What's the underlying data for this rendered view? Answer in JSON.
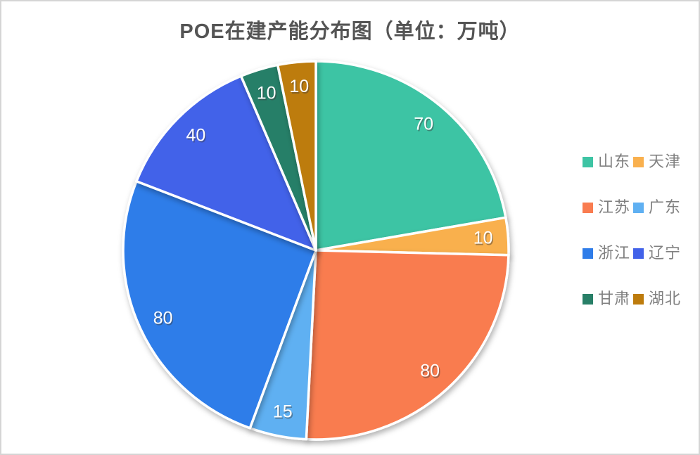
{
  "frame": {
    "background": "#FFFFFF",
    "border_color": "#D5D5D5"
  },
  "chart_data": {
    "type": "pie",
    "title": "POE在建产能分布图（单位：万吨）",
    "unit_label": "万吨",
    "categories": [
      "山东",
      "天津",
      "江苏",
      "广东",
      "浙江",
      "辽宁",
      "甘肃",
      "湖北"
    ],
    "values": [
      70,
      10,
      80,
      15,
      80,
      40,
      10,
      10
    ],
    "colors": [
      "#3EC4A4",
      "#F9B04E",
      "#F97C50",
      "#5FB0F2",
      "#2F7DE9",
      "#4262E9",
      "#287F67",
      "#BD7B0C"
    ],
    "total": 315,
    "start_angle_deg": 0,
    "direction": "clockwise",
    "data_label_color": "#FFFFFF",
    "legend_position": "right",
    "legend_columns": 2,
    "legend_text_color": "#808080",
    "title_color": "#545454",
    "slice_border_color": "#FFFFFF"
  }
}
